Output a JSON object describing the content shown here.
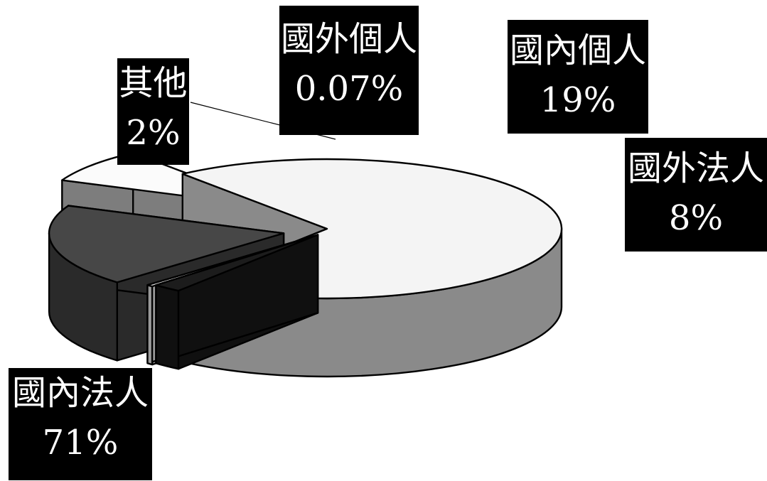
{
  "chart_data": {
    "type": "pie",
    "style": "3d-exploded",
    "legend": "none",
    "slices": [
      {
        "name": "國內法人",
        "value": 71,
        "label": "71%",
        "color": "#f4f4f4",
        "side_color": "#8a8a8a"
      },
      {
        "name": "其他",
        "value": 2,
        "label": "2%",
        "color": "#1c1c1c",
        "side_color": "#101010"
      },
      {
        "name": "國外個人",
        "value": 0.07,
        "label": "0.07%",
        "color": "#dcdcdc",
        "side_color": "#9a9a9a"
      },
      {
        "name": "國內個人",
        "value": 19,
        "label": "19%",
        "color": "#474747",
        "side_color": "#2a2a2a"
      },
      {
        "name": "國外法人",
        "value": 8,
        "label": "8%",
        "color": "#fbfbfb",
        "side_color": "#7d7d7d"
      }
    ]
  }
}
